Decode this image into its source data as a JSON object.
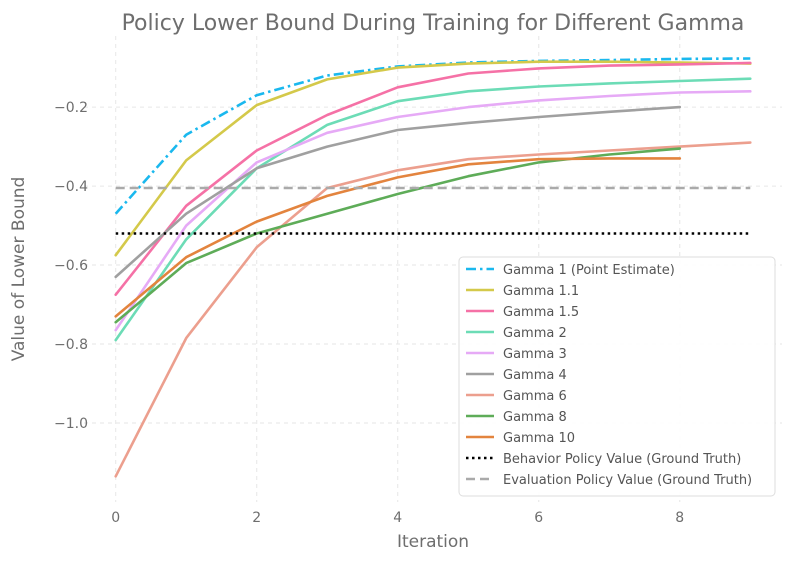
{
  "chart_data": {
    "type": "line",
    "title": "Policy Lower Bound During Training for Different Gamma",
    "xlabel": "Iteration",
    "ylabel": "Value of Lower Bound",
    "xlim": [
      -0.45,
      9.45
    ],
    "ylim": [
      -1.2,
      -0.02
    ],
    "xticks": [
      0,
      2,
      4,
      6,
      8
    ],
    "xtick_labels": [
      "0",
      "2",
      "4",
      "6",
      "8"
    ],
    "yticks": [
      -1.0,
      -0.8,
      -0.6,
      -0.4,
      -0.2
    ],
    "ytick_labels": [
      "−1.0",
      "−0.8",
      "−0.6",
      "−0.4",
      "−0.2"
    ],
    "grid": true,
    "legend_position": "lower-right",
    "series": [
      {
        "name": "Gamma 1 (Point Estimate)",
        "color": "#1ab8ee",
        "dash": "dashdot",
        "x": [
          0,
          1,
          2,
          3,
          4,
          5,
          6,
          7,
          8,
          9
        ],
        "values": [
          -0.47,
          -0.27,
          -0.17,
          -0.12,
          -0.097,
          -0.087,
          -0.083,
          -0.081,
          -0.078,
          -0.077
        ]
      },
      {
        "name": "Gamma 1.1",
        "color": "#d4c94a",
        "dash": "solid",
        "x": [
          0,
          1,
          2,
          3,
          4,
          5,
          6,
          7,
          8,
          9
        ],
        "values": [
          -0.575,
          -0.335,
          -0.195,
          -0.13,
          -0.1,
          -0.09,
          -0.085,
          -0.085,
          -0.087,
          -0.09
        ]
      },
      {
        "name": "Gamma 1.5",
        "color": "#f571a6",
        "dash": "solid",
        "x": [
          0,
          1,
          2,
          3,
          4,
          5,
          6,
          7,
          8,
          9
        ],
        "values": [
          -0.675,
          -0.45,
          -0.31,
          -0.22,
          -0.15,
          -0.115,
          -0.102,
          -0.095,
          -0.092,
          -0.088
        ]
      },
      {
        "name": "Gamma 2",
        "color": "#6cdcb6",
        "dash": "solid",
        "x": [
          0,
          1,
          2,
          3,
          4,
          5,
          6,
          7,
          8,
          9
        ],
        "values": [
          -0.79,
          -0.535,
          -0.355,
          -0.245,
          -0.185,
          -0.16,
          -0.148,
          -0.14,
          -0.134,
          -0.128
        ]
      },
      {
        "name": "Gamma 3",
        "color": "#e6aaf6",
        "dash": "solid",
        "x": [
          0,
          1,
          2,
          3,
          4,
          5,
          6,
          7,
          8,
          9
        ],
        "values": [
          -0.765,
          -0.5,
          -0.34,
          -0.265,
          -0.225,
          -0.2,
          -0.183,
          -0.172,
          -0.163,
          -0.16
        ]
      },
      {
        "name": "Gamma 4",
        "color": "#a0a0a0",
        "dash": "solid",
        "x": [
          0,
          1,
          2,
          3,
          4,
          5,
          6,
          7,
          8
        ],
        "values": [
          -0.63,
          -0.47,
          -0.355,
          -0.3,
          -0.258,
          -0.24,
          -0.225,
          -0.212,
          -0.2
        ]
      },
      {
        "name": "Gamma 6",
        "color": "#ec9f8e",
        "dash": "solid",
        "x": [
          0,
          1,
          2,
          3,
          4,
          5,
          6,
          7,
          8,
          9
        ],
        "values": [
          -1.135,
          -0.785,
          -0.555,
          -0.405,
          -0.36,
          -0.332,
          -0.32,
          -0.31,
          -0.3,
          -0.29
        ]
      },
      {
        "name": "Gamma 8",
        "color": "#5eac58",
        "dash": "solid",
        "x": [
          0,
          1,
          2,
          3,
          4,
          5,
          6,
          7,
          8
        ],
        "values": [
          -0.745,
          -0.595,
          -0.52,
          -0.47,
          -0.42,
          -0.375,
          -0.34,
          -0.32,
          -0.305
        ]
      },
      {
        "name": "Gamma 10",
        "color": "#e3843e",
        "dash": "solid",
        "x": [
          0,
          1,
          2,
          3,
          4,
          5,
          6,
          7,
          8
        ],
        "values": [
          -0.73,
          -0.58,
          -0.49,
          -0.425,
          -0.378,
          -0.345,
          -0.332,
          -0.33,
          -0.33
        ]
      },
      {
        "name": "Behavior Policy Value (Ground Truth)",
        "color": "#000000",
        "dash": "dotted",
        "x": [
          0,
          9
        ],
        "values": [
          -0.52,
          -0.52
        ]
      },
      {
        "name": "Evaluation Policy Value (Ground Truth)",
        "color": "#aaaaaa",
        "dash": "dashed",
        "x": [
          0,
          9
        ],
        "values": [
          -0.405,
          -0.405
        ]
      }
    ]
  }
}
